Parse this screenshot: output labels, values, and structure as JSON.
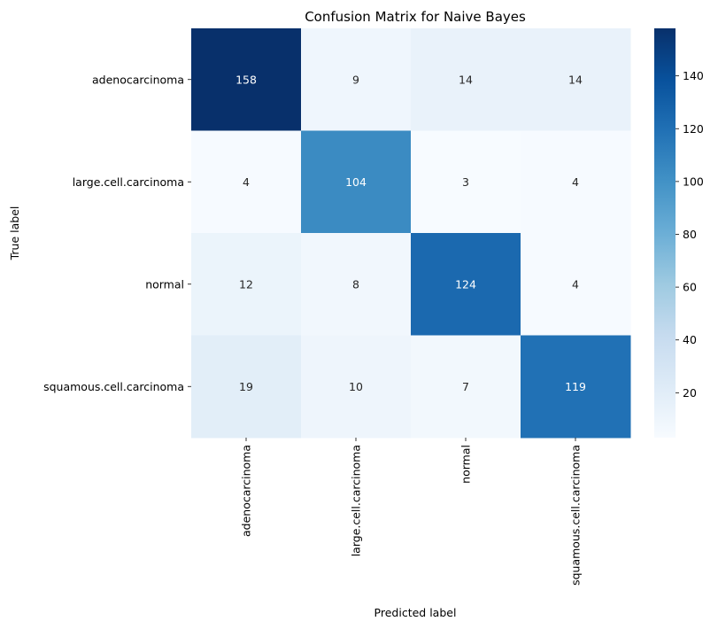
{
  "chart_data": {
    "type": "heatmap",
    "title": "Confusion Matrix for Naive Bayes",
    "xlabel": "Predicted label",
    "ylabel": "True label",
    "x_categories": [
      "adenocarcinoma",
      "large.cell.carcinoma",
      "normal",
      "squamous.cell.carcinoma"
    ],
    "y_categories": [
      "adenocarcinoma",
      "large.cell.carcinoma",
      "normal",
      "squamous.cell.carcinoma"
    ],
    "values": [
      [
        158,
        9,
        14,
        14
      ],
      [
        4,
        104,
        3,
        4
      ],
      [
        12,
        8,
        124,
        4
      ],
      [
        19,
        10,
        7,
        119
      ]
    ],
    "colormap": "Blues",
    "colorbar": {
      "range": [
        3,
        158
      ],
      "ticks": [
        20,
        40,
        60,
        80,
        100,
        120,
        140
      ]
    },
    "annotated": true
  }
}
